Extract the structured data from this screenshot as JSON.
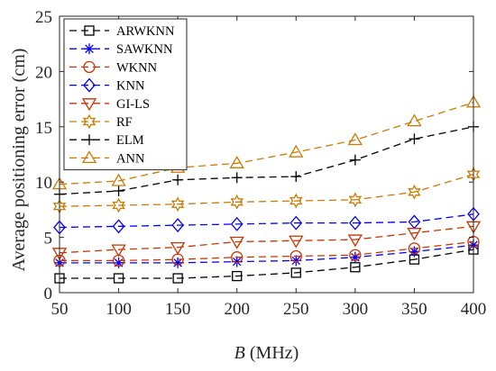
{
  "chart_data": {
    "type": "line",
    "title": "",
    "xlabel_italic": "B",
    "xlabel_rest": " (MHz)",
    "ylabel": "Average  positioning error  (cm)",
    "x": [
      50,
      100,
      150,
      200,
      250,
      300,
      350,
      400
    ],
    "xlim": [
      50,
      400
    ],
    "ylim": [
      0,
      25
    ],
    "xticks": [
      50,
      100,
      150,
      200,
      250,
      300,
      350,
      400
    ],
    "yticks": [
      0,
      5,
      10,
      15,
      20,
      25
    ],
    "grid": false,
    "legend_position": "top-left",
    "series": [
      {
        "name": "ARWKNN",
        "color": "#000000",
        "marker": "square",
        "values": [
          1.3,
          1.3,
          1.3,
          1.5,
          1.8,
          2.3,
          3.0,
          3.9
        ]
      },
      {
        "name": "SAWKNN",
        "color": "#0000ff",
        "marker": "asterisk",
        "values": [
          2.7,
          2.7,
          2.7,
          2.8,
          2.9,
          3.2,
          3.7,
          4.3
        ]
      },
      {
        "name": "WKNN",
        "color": "#cc3300",
        "marker": "circle",
        "values": [
          2.9,
          2.9,
          3.0,
          3.2,
          3.3,
          3.4,
          4.0,
          4.6
        ]
      },
      {
        "name": "KNN",
        "color": "#0000ff",
        "marker": "diamond",
        "values": [
          5.9,
          6.0,
          6.1,
          6.2,
          6.3,
          6.3,
          6.4,
          7.1
        ]
      },
      {
        "name": "GI-LS",
        "color": "#cc3300",
        "marker": "triangle-down",
        "values": [
          3.6,
          3.9,
          4.1,
          4.6,
          4.7,
          4.8,
          5.4,
          6.0
        ]
      },
      {
        "name": "RF",
        "color": "#cc7a00",
        "marker": "hexagram",
        "values": [
          7.8,
          7.9,
          8.0,
          8.2,
          8.3,
          8.4,
          9.1,
          10.7
        ]
      },
      {
        "name": "ELM",
        "color": "#000000",
        "marker": "plus",
        "values": [
          8.9,
          9.2,
          10.2,
          10.4,
          10.5,
          12.0,
          13.9,
          15.0
        ]
      },
      {
        "name": "ANN",
        "color": "#cc7a00",
        "marker": "triangle-up",
        "values": [
          9.8,
          10.1,
          11.3,
          11.7,
          12.7,
          13.8,
          15.5,
          17.2
        ]
      }
    ]
  }
}
